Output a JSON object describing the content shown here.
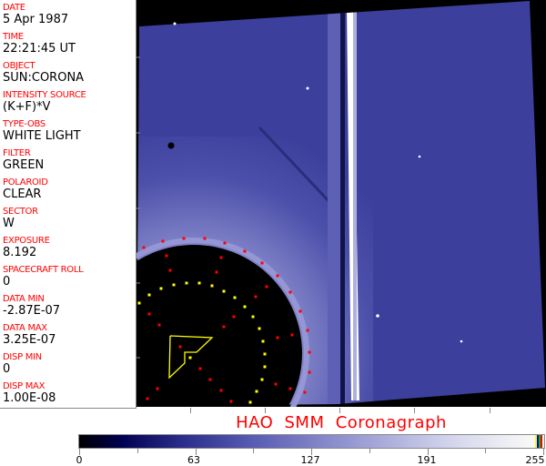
{
  "header_fields": [
    {
      "label": "DATE",
      "value": "5 Apr 1987"
    },
    {
      "label": "TIME",
      "value": "22:21:45 UT"
    },
    {
      "label": "OBJECT",
      "value": "SUN:CORONA"
    },
    {
      "label": "INTENSITY SOURCE",
      "value": "(K+F)*V"
    },
    {
      "label": "TYPE-OBS",
      "value": "WHITE LIGHT"
    },
    {
      "label": "FILTER",
      "value": "GREEN"
    },
    {
      "label": "POLAROID",
      "value": "CLEAR"
    },
    {
      "label": "SECTOR",
      "value": "W"
    },
    {
      "label": "EXPOSURE",
      "value": "8.192"
    },
    {
      "label": "SPACECRAFT ROLL",
      "value": "0"
    },
    {
      "label": "DATA MIN",
      "value": "-2.87E-07"
    },
    {
      "label": "DATA MAX",
      "value": "3.25E-07"
    },
    {
      "label": "DISP MIN",
      "value": "0"
    },
    {
      "label": "DISP MAX",
      "value": "1.00E-08"
    }
  ],
  "title": "HAO  SMM Coronagraph",
  "colorbar": {
    "tick_labels": [
      "0",
      "63",
      "127",
      "191",
      "255"
    ],
    "range": [
      0,
      255
    ],
    "end_colors": [
      "#ffff00",
      "#0000ff",
      "#00c000",
      "#ff0000"
    ]
  },
  "colors": {
    "label": "#ff0000",
    "image_blue": "#3c3f9c",
    "overlay_red": "#ff0000",
    "overlay_yellow": "#ffff00"
  }
}
